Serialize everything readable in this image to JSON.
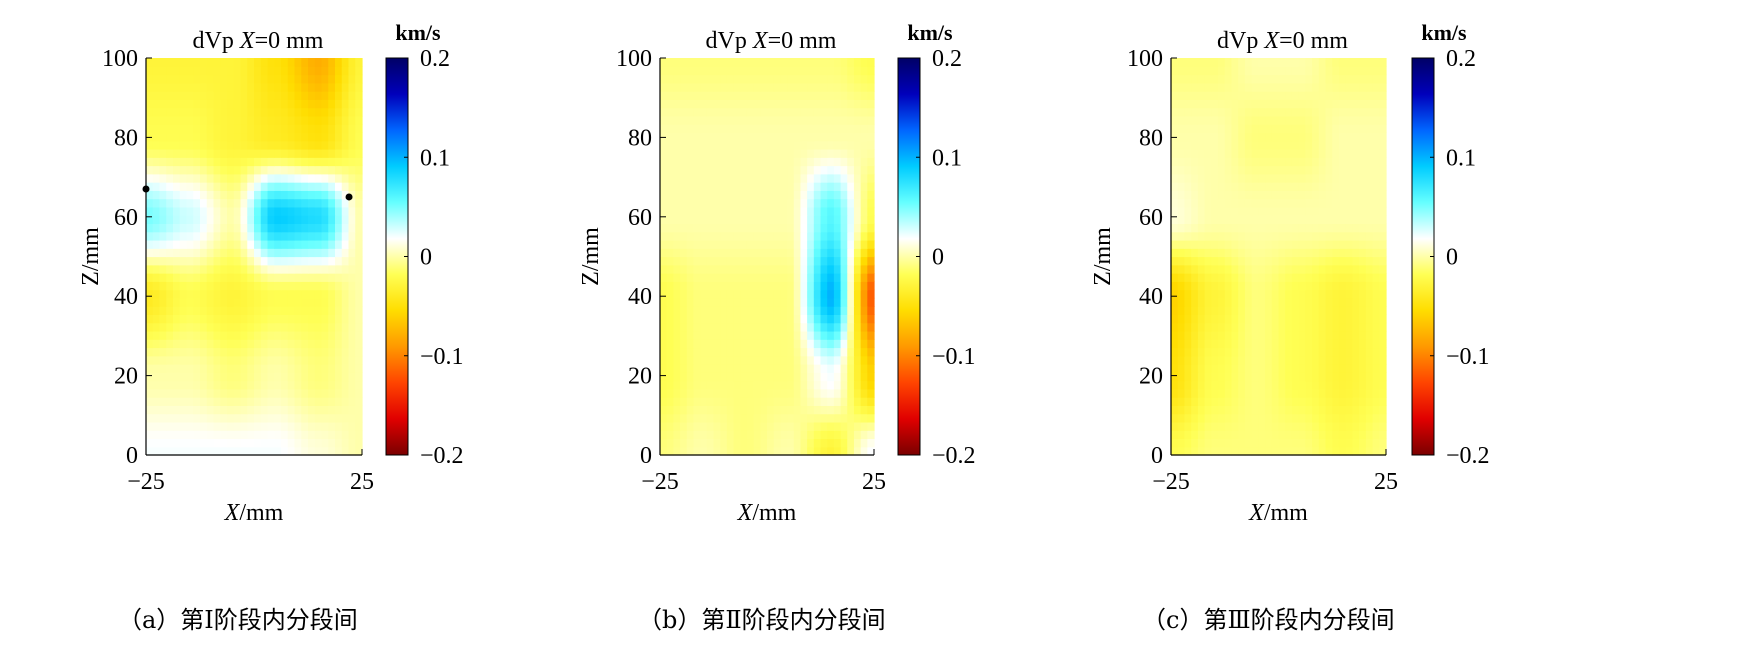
{
  "colorbar": {
    "unit": "km/s",
    "ticks": [
      {
        "value": 0.2,
        "label": "0.2"
      },
      {
        "value": 0.1,
        "label": "0.1"
      },
      {
        "value": 0,
        "label": "0"
      },
      {
        "value": -0.1,
        "label": "−0.1"
      },
      {
        "value": -0.2,
        "label": "−0.2"
      }
    ],
    "colormap": [
      "#7a0000",
      "#e00000",
      "#ff4400",
      "#ff9900",
      "#ffdd00",
      "#ffff55",
      "#ffffff",
      "#66ffff",
      "#00ccff",
      "#0066ff",
      "#0000bb",
      "#000066"
    ]
  },
  "chart_data": [
    {
      "type": "heatmap",
      "panel": "a",
      "title_var": "dVp",
      "title_italic": "X",
      "title_rest": "=0 mm",
      "xlabel_italic": "X",
      "xlabel_rest": "/mm",
      "ylabel": "Z/mm",
      "xlim": [
        -25,
        25
      ],
      "ylim": [
        0,
        100
      ],
      "xticks": [
        {
          "value": -25,
          "label": "−25"
        },
        {
          "value": 25,
          "label": "25"
        }
      ],
      "yticks": [
        {
          "value": 0,
          "label": "0"
        },
        {
          "value": 20,
          "label": "20"
        },
        {
          "value": 40,
          "label": "40"
        },
        {
          "value": 60,
          "label": "60"
        },
        {
          "value": 80,
          "label": "80"
        },
        {
          "value": 100,
          "label": "100"
        }
      ],
      "clim": [
        -0.2,
        0.2
      ],
      "x": [
        -25,
        -15,
        -5,
        5,
        15,
        25
      ],
      "z": [
        0,
        20,
        40,
        60,
        80,
        100
      ],
      "values": [
        [
          0.02,
          0.02,
          0.02,
          0.02,
          0.01,
          0.0
        ],
        [
          0.0,
          0.0,
          -0.01,
          0.0,
          -0.01,
          0.0
        ],
        [
          -0.04,
          -0.02,
          -0.03,
          -0.02,
          -0.02,
          0.0
        ],
        [
          0.05,
          0.03,
          0.0,
          0.09,
          0.08,
          0.0
        ],
        [
          -0.02,
          -0.02,
          -0.03,
          -0.04,
          -0.05,
          -0.02
        ],
        [
          -0.03,
          -0.03,
          -0.03,
          -0.05,
          -0.08,
          -0.03
        ]
      ],
      "markers": [
        {
          "x": -25,
          "z": 67
        },
        {
          "x": 22,
          "z": 65
        }
      ],
      "caption": "（a）第Ⅰ阶段内分段间"
    },
    {
      "type": "heatmap",
      "panel": "b",
      "title_var": "dVp",
      "title_italic": "X",
      "title_rest": "=0 mm",
      "xlabel_italic": "X",
      "xlabel_rest": "/mm",
      "ylabel": "Z/mm",
      "xlim": [
        -25,
        25
      ],
      "ylim": [
        0,
        100
      ],
      "xticks": [
        {
          "value": -25,
          "label": "−25"
        },
        {
          "value": 25,
          "label": "25"
        }
      ],
      "yticks": [
        {
          "value": 0,
          "label": "0"
        },
        {
          "value": 20,
          "label": "20"
        },
        {
          "value": 40,
          "label": "40"
        },
        {
          "value": 60,
          "label": "60"
        },
        {
          "value": 80,
          "label": "80"
        },
        {
          "value": 100,
          "label": "100"
        }
      ],
      "clim": [
        -0.2,
        0.2
      ],
      "x": [
        -25,
        -15,
        -5,
        5,
        15,
        25
      ],
      "z": [
        0,
        20,
        40,
        60,
        80,
        100
      ],
      "values": [
        [
          -0.01,
          0.0,
          -0.01,
          0.0,
          -0.03,
          0.02
        ],
        [
          -0.02,
          -0.01,
          -0.01,
          -0.01,
          0.02,
          -0.06
        ],
        [
          -0.02,
          -0.01,
          -0.01,
          -0.01,
          0.1,
          -0.12
        ],
        [
          0.0,
          0.0,
          0.0,
          0.0,
          0.06,
          -0.02
        ],
        [
          0.0,
          0.0,
          0.0,
          0.0,
          0.0,
          0.0
        ],
        [
          -0.01,
          -0.01,
          -0.01,
          -0.01,
          -0.01,
          -0.02
        ]
      ],
      "caption": "（b）第Ⅱ阶段内分段间"
    },
    {
      "type": "heatmap",
      "panel": "c",
      "title_var": "dVp",
      "title_italic": "X",
      "title_rest": "=0 mm",
      "xlabel_italic": "X",
      "xlabel_rest": "/mm",
      "ylabel": "Z/mm",
      "xlim": [
        -25,
        25
      ],
      "ylim": [
        0,
        100
      ],
      "xticks": [
        {
          "value": -25,
          "label": "−25"
        },
        {
          "value": 25,
          "label": "25"
        }
      ],
      "yticks": [
        {
          "value": 0,
          "label": "0"
        },
        {
          "value": 20,
          "label": "20"
        },
        {
          "value": 40,
          "label": "40"
        },
        {
          "value": 60,
          "label": "60"
        },
        {
          "value": 80,
          "label": "80"
        },
        {
          "value": 100,
          "label": "100"
        }
      ],
      "clim": [
        -0.2,
        0.2
      ],
      "x": [
        -25,
        -15,
        -5,
        5,
        15,
        25
      ],
      "z": [
        0,
        20,
        40,
        60,
        80,
        100
      ],
      "values": [
        [
          -0.02,
          -0.01,
          -0.01,
          -0.01,
          -0.02,
          -0.01
        ],
        [
          -0.05,
          -0.02,
          -0.01,
          -0.02,
          -0.03,
          -0.02
        ],
        [
          -0.06,
          -0.03,
          -0.01,
          -0.02,
          -0.03,
          -0.02
        ],
        [
          0.01,
          0.0,
          0.0,
          0.0,
          0.0,
          0.0
        ],
        [
          0.0,
          0.0,
          -0.01,
          -0.01,
          0.0,
          0.0
        ],
        [
          -0.01,
          -0.01,
          0.0,
          0.0,
          -0.01,
          -0.01
        ]
      ],
      "caption": "（c）第Ⅲ阶段内分段间"
    }
  ]
}
